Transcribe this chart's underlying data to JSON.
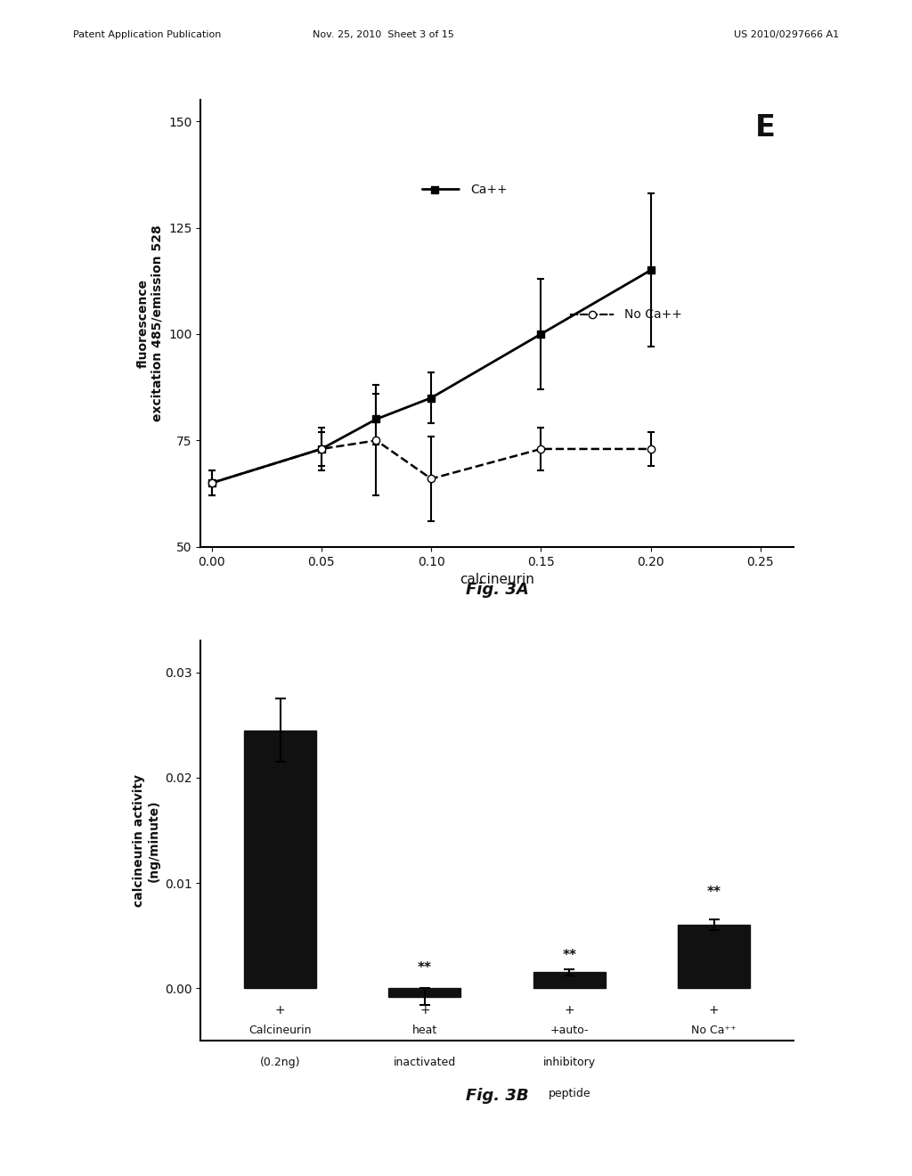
{
  "fig3a": {
    "ca_x": [
      0.0,
      0.05,
      0.075,
      0.1,
      0.15,
      0.2
    ],
    "ca_y": [
      65,
      73,
      80,
      85,
      100,
      115
    ],
    "ca_yerr": [
      3,
      5,
      6,
      6,
      13,
      18
    ],
    "noca_x": [
      0.0,
      0.05,
      0.075,
      0.1,
      0.15,
      0.2
    ],
    "noca_y": [
      65,
      73,
      75,
      66,
      73,
      73
    ],
    "noca_yerr": [
      3,
      4,
      13,
      10,
      5,
      4
    ],
    "xlabel": "calcineurin",
    "ylabel": "fluorescence\nexcitation 485/emission 528",
    "title_label": "E",
    "ylim": [
      50,
      155
    ],
    "xlim": [
      -0.005,
      0.265
    ],
    "yticks": [
      50,
      75,
      100,
      125,
      150
    ],
    "xticks": [
      0.0,
      0.05,
      0.1,
      0.15,
      0.2,
      0.25
    ],
    "legend_ca": "Ca++",
    "legend_noca": "No Ca++",
    "fig_label": "Fig. 3A"
  },
  "fig3b": {
    "bar_values": [
      0.0245,
      -0.0008,
      0.0015,
      0.006
    ],
    "bar_errors": [
      0.003,
      0.0008,
      0.0003,
      0.0005
    ],
    "bar_color": "#111111",
    "ylabel": "calcineurin activity\n(ng/minute)",
    "ylim": [
      -0.005,
      0.033
    ],
    "yticks": [
      0.0,
      0.01,
      0.02,
      0.03
    ],
    "fig_label": "Fig. 3B",
    "significance": [
      "",
      "**",
      "**",
      "**"
    ]
  },
  "header_left": "Patent Application Publication",
  "header_mid": "Nov. 25, 2010  Sheet 3 of 15",
  "header_right": "US 2010/0297666 A1",
  "bg_color": "#ffffff",
  "text_color": "#111111"
}
